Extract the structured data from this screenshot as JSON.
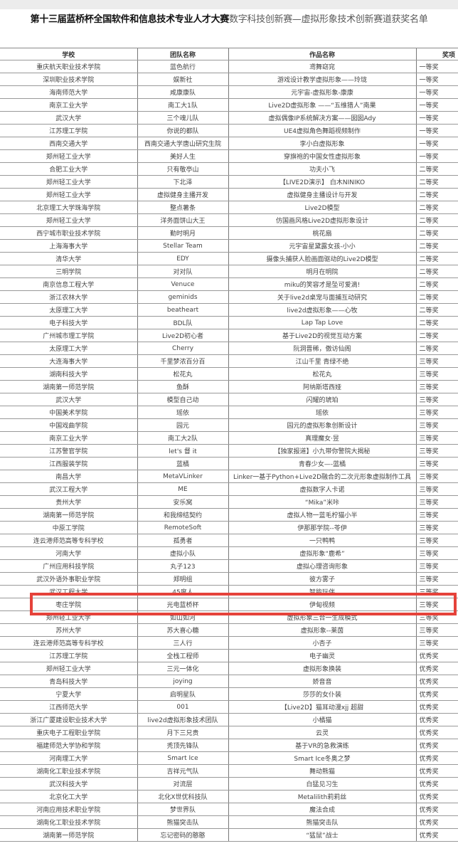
{
  "title": {
    "bold_part": "第十三届蓝桥杯全国软件和信息技术专业人才大赛",
    "normal_part": "数字科技创新赛—虚拟形象技术创新赛道获奖名单"
  },
  "table": {
    "headers": [
      "学校",
      "团队名称",
      "作品名称",
      "奖项"
    ],
    "rows": [
      [
        "重庆航天职业技术学院",
        "蓝色航行",
        "鸢舞窈窕",
        "一等奖"
      ],
      [
        "深圳职业技术学院",
        "娱新社",
        "游戏设计教学虚拟形象——玲珑",
        "一等奖"
      ],
      [
        "海南师范大学",
        "咸康康队",
        "元宇宙-虚拟形象-康康",
        "一等奖"
      ],
      [
        "南京工业大学",
        "南工大1队",
        "Live2D虚拟形象 ——“五维猎人”南果",
        "一等奖"
      ],
      [
        "武汉大学",
        "三个魂儿队",
        "虚拟偶像IP系统解决方案——囡囡Ady",
        "一等奖"
      ],
      [
        "江苏理工学院",
        "你说的都队",
        "UE4虚拟角色舞蹈视频制作",
        "一等奖"
      ],
      [
        "西南交通大学",
        "西南交通大学唐山研究生院",
        "李小白虚拟形象",
        "一等奖"
      ],
      [
        "郑州轻工业大学",
        "美好人生",
        "穿旗袍的中国女性虚拟形象",
        "一等奖"
      ],
      [
        "合肥工业大学",
        "只有敬亭山",
        "功夫小飞",
        "二等奖"
      ],
      [
        "郑州轻工业大学",
        "下北泽",
        "【LIVE2D演示】 白木NINIKO",
        "二等奖"
      ],
      [
        "郑州轻工业大学",
        "虚拟健身主播开发",
        "虚拟健身主播设计与开发",
        "二等奖"
      ],
      [
        "北京理工大学珠海学院",
        "整点薯条",
        "Live2D模型",
        "二等奖"
      ],
      [
        "郑州轻工业大学",
        "洋务面饼山大王",
        "仿国画风格Live2D虚拟形象设计",
        "二等奖"
      ],
      [
        "西宁城市职业技术学院",
        "勤时明月",
        "桃花扇",
        "二等奖"
      ],
      [
        "上海海事大学",
        "Stellar Team",
        "元宇宙星黛露女孩-小小",
        "二等奖"
      ],
      [
        "清华大学",
        "EDY",
        "摄像头捕获人脸画面驱动的Live2D模型",
        "二等奖"
      ],
      [
        "三明学院",
        "对对队",
        "明月在明院",
        "二等奖"
      ],
      [
        "南京信息工程大学",
        "Venuce",
        "miku的笑容才是坠可爱滴!",
        "二等奖"
      ],
      [
        "浙江农林大学",
        "geminids",
        "关于live2d桌宠与面捕互动研究",
        "二等奖"
      ],
      [
        "太原理工大学",
        "beatheart",
        "live2d虚拟形象——心牧",
        "二等奖"
      ],
      [
        "电子科技大学",
        "BDL队",
        "Lap Tap Love",
        "二等奖"
      ],
      [
        "广州城市理工学院",
        "Live2D初心者",
        "基于Live2D的视觉互动方案",
        "二等奖"
      ],
      [
        "太原理工大学",
        "Cherry",
        "阮洞晋稀，傲访仙阁",
        "二等奖"
      ],
      [
        "大连海事大学",
        "千里梦浓百分百",
        "江山千里 青绿不绝",
        "三等奖"
      ],
      [
        "湖南科技大学",
        "松花丸",
        "松花丸",
        "三等奖"
      ],
      [
        "湖南第一师范学院",
        "鱼酥",
        "阿纳斯塔西娅",
        "三等奖"
      ],
      [
        "武汉大学",
        "模型自己动",
        "闪耀的琥珀",
        "三等奖"
      ],
      [
        "中国美术学院",
        "瑶依",
        "瑶依",
        "三等奖"
      ],
      [
        "中国戏曲学院",
        "园元",
        "园元的虚拟形象创新设计",
        "三等奖"
      ],
      [
        "南京工业大学",
        "南工大2队",
        "真理魔女·昱",
        "三等奖"
      ],
      [
        "江苏警官学院",
        "let's 督 it",
        "【独家报道】小九带你警院大揭秘",
        "三等奖"
      ],
      [
        "江西服装学院",
        "蓝橘",
        "青春少女—-蓝橘",
        "三等奖"
      ],
      [
        "南昌大学",
        "MetaVLinker",
        "Linker一基于Python+Live2D融合的二次元形象虚拟制作工具",
        "三等奖"
      ],
      [
        "武汉工程大学",
        "ME",
        "虚拟数字人卡诺",
        "三等奖"
      ],
      [
        "贵州大学",
        "安乐窝",
        "“Mika”米咔",
        "三等奖"
      ],
      [
        "湖南第一师范学院",
        "和我缔结契约",
        "虚拟人物一蓝毛柠猫小半",
        "三等奖"
      ],
      [
        "中原工学院",
        "RemoteSoft",
        "伊那那学院--苓伊",
        "三等奖"
      ],
      [
        "连云港师范高等专科学校",
        "孤勇者",
        "一只鸭鸭",
        "三等奖"
      ],
      [
        "河南大学",
        "虚拟小队",
        "虚拟形象“鹿希”",
        "三等奖"
      ],
      [
        "广州应用科技学院",
        "丸子123",
        "虚拟心理咨询形象",
        "三等奖"
      ],
      [
        "武汉外语外事职业学院",
        "郑明组",
        "彼方雾子",
        "三等奖"
      ],
      [
        "武汉工程大学",
        "45度人",
        "智能玩伴",
        "三等奖"
      ],
      [
        "枣庄学院",
        "光电蓝桥杯",
        "伊甸视频",
        "三等奖"
      ],
      [
        "郑州轻工业大学",
        "如山如河",
        "虚拟形象三合一生成模式",
        "三等奖"
      ],
      [
        "苏州大学",
        "苏大喜心糖",
        "虚拟形象--莱茵",
        "三等奖"
      ],
      [
        "连云港师范高等专科学校",
        "三人行",
        "小杏子",
        "三等奖"
      ],
      [
        "江苏理工学院",
        "全栈工程师",
        "电子幽灵",
        "优秀奖"
      ],
      [
        "郑州轻工业大学",
        "三元一体化",
        "虚拟形象换装",
        "优秀奖"
      ],
      [
        "青岛科技大学",
        "joying",
        "娇音音",
        "优秀奖"
      ],
      [
        "宁夏大学",
        "启明星队",
        "莎莎的女仆装",
        "优秀奖"
      ],
      [
        "江西师范大学",
        "001",
        "【Live2D】猫耳动漫xjj 超甜",
        "优秀奖"
      ],
      [
        "浙江广厦建设职业技术大学",
        "live2d虚拟形象技术团队",
        "小橘猫",
        "优秀奖"
      ],
      [
        "重庆电子工程职业学院",
        "月下三兄贵",
        "云灵",
        "优秀奖"
      ],
      [
        "福建师范大学协和学院",
        "秃顶先锋队",
        "基于VR的急救演练",
        "优秀奖"
      ],
      [
        "河南理工大学",
        "Smart Ice",
        "Smart Ice冬奥之梦",
        "优秀奖"
      ],
      [
        "湖南化工职业技术学院",
        "吉祥元气队",
        "舞动熊猫",
        "优秀奖"
      ],
      [
        "武汉科技大学",
        "对流层",
        "白猛见习生",
        "优秀奖"
      ],
      [
        "北京化工大学",
        "北化X世优科技队",
        "Metalilith莉莉丝",
        "优秀奖"
      ],
      [
        "河南应用技术职业学院",
        "梦世界队",
        "魔法合成",
        "优秀奖"
      ],
      [
        "湖南化工职业技术学院",
        "熊猫突击队",
        "熊猫突击队",
        "优秀奖"
      ],
      [
        "湖南第一师范学院",
        "忘记密码的憨憨",
        "“猛鼠”战士",
        "优秀奖"
      ]
    ],
    "highlighted_row": 42,
    "highlight_color": "#e5423a"
  }
}
